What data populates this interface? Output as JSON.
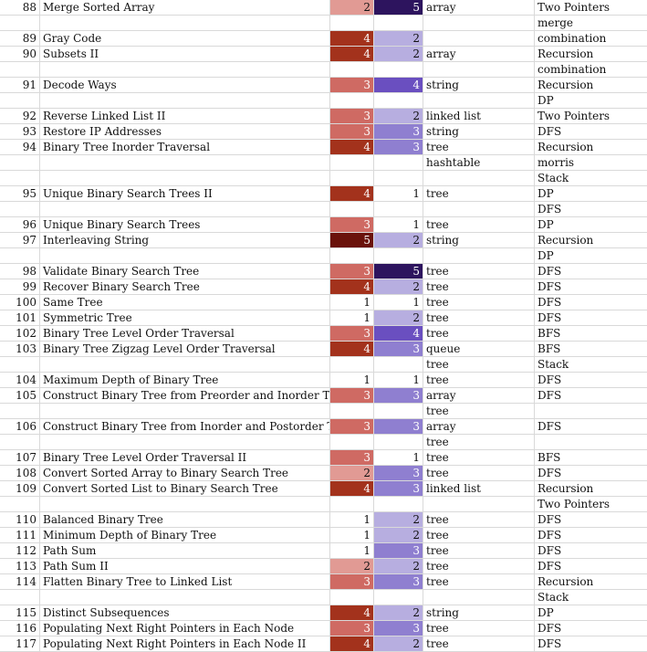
{
  "rows": [
    {
      "num": "88",
      "title": "Merge Sorted Array",
      "diff": "2",
      "freq": "5",
      "ds": "array",
      "alg": "Two Pointers"
    },
    {
      "num": "",
      "title": "",
      "diff": "",
      "freq": "",
      "ds": "",
      "alg": "merge"
    },
    {
      "num": "89",
      "title": "Gray Code",
      "diff": "4",
      "freq": "2",
      "ds": "",
      "alg": "combination"
    },
    {
      "num": "90",
      "title": "Subsets II",
      "diff": "4",
      "freq": "2",
      "ds": "array",
      "alg": "Recursion"
    },
    {
      "num": "",
      "title": "",
      "diff": "",
      "freq": "",
      "ds": "",
      "alg": "combination"
    },
    {
      "num": "91",
      "title": "Decode Ways",
      "diff": "3",
      "freq": "4",
      "ds": "string",
      "alg": "Recursion"
    },
    {
      "num": "",
      "title": "",
      "diff": "",
      "freq": "",
      "ds": "",
      "alg": "DP"
    },
    {
      "num": "92",
      "title": "Reverse Linked List II",
      "diff": "3",
      "freq": "2",
      "ds": "linked list",
      "alg": "Two Pointers"
    },
    {
      "num": "93",
      "title": "Restore IP Addresses",
      "diff": "3",
      "freq": "3",
      "ds": "string",
      "alg": "DFS"
    },
    {
      "num": "94",
      "title": "Binary Tree Inorder Traversal",
      "diff": "4",
      "freq": "3",
      "ds": "tree",
      "alg": "Recursion"
    },
    {
      "num": "",
      "title": "",
      "diff": "",
      "freq": "",
      "ds": "hashtable",
      "alg": "morris"
    },
    {
      "num": "",
      "title": "",
      "diff": "",
      "freq": "",
      "ds": "",
      "alg": "Stack"
    },
    {
      "num": "95",
      "title": "Unique Binary Search Trees II",
      "diff": "4",
      "freq": "1",
      "ds": "tree",
      "alg": "DP"
    },
    {
      "num": "",
      "title": "",
      "diff": "",
      "freq": "",
      "ds": "",
      "alg": "DFS"
    },
    {
      "num": "96",
      "title": "Unique Binary Search Trees",
      "diff": "3",
      "freq": "1",
      "ds": "tree",
      "alg": "DP"
    },
    {
      "num": "97",
      "title": "Interleaving String",
      "diff": "5",
      "freq": "2",
      "ds": "string",
      "alg": "Recursion"
    },
    {
      "num": "",
      "title": "",
      "diff": "",
      "freq": "",
      "ds": "",
      "alg": "DP"
    },
    {
      "num": "98",
      "title": "Validate Binary Search Tree",
      "diff": "3",
      "freq": "5",
      "ds": "tree",
      "alg": "DFS"
    },
    {
      "num": "99",
      "title": "Recover Binary Search Tree",
      "diff": "4",
      "freq": "2",
      "ds": "tree",
      "alg": "DFS"
    },
    {
      "num": "100",
      "title": "Same Tree",
      "diff": "1",
      "freq": "1",
      "ds": "tree",
      "alg": "DFS"
    },
    {
      "num": "101",
      "title": "Symmetric Tree",
      "diff": "1",
      "freq": "2",
      "ds": "tree",
      "alg": "DFS"
    },
    {
      "num": "102",
      "title": "Binary Tree Level Order Traversal",
      "diff": "3",
      "freq": "4",
      "ds": "tree",
      "alg": "BFS"
    },
    {
      "num": "103",
      "title": "Binary Tree Zigzag Level Order Traversal",
      "diff": "4",
      "freq": "3",
      "ds": "queue",
      "alg": "BFS"
    },
    {
      "num": "",
      "title": "",
      "diff": "",
      "freq": "",
      "ds": "tree",
      "alg": "Stack"
    },
    {
      "num": "104",
      "title": "Maximum Depth of Binary Tree",
      "diff": "1",
      "freq": "1",
      "ds": "tree",
      "alg": "DFS"
    },
    {
      "num": "105",
      "title": "Construct Binary Tree from Preorder and Inorder Tr",
      "diff": "3",
      "freq": "3",
      "ds": "array",
      "alg": "DFS"
    },
    {
      "num": "",
      "title": "",
      "diff": "",
      "freq": "",
      "ds": "tree",
      "alg": ""
    },
    {
      "num": "106",
      "title": "Construct Binary Tree from Inorder and Postorder T",
      "diff": "3",
      "freq": "3",
      "ds": "array",
      "alg": "DFS"
    },
    {
      "num": "",
      "title": "",
      "diff": "",
      "freq": "",
      "ds": "tree",
      "alg": ""
    },
    {
      "num": "107",
      "title": "Binary Tree Level Order Traversal II",
      "diff": "3",
      "freq": "1",
      "ds": "tree",
      "alg": "BFS"
    },
    {
      "num": "108",
      "title": "Convert Sorted Array to Binary Search Tree",
      "diff": "2",
      "freq": "3",
      "ds": "tree",
      "alg": "DFS"
    },
    {
      "num": "109",
      "title": "Convert Sorted List to Binary Search Tree",
      "diff": "4",
      "freq": "3",
      "ds": "linked list",
      "alg": "Recursion"
    },
    {
      "num": "",
      "title": "",
      "diff": "",
      "freq": "",
      "ds": "",
      "alg": "Two Pointers"
    },
    {
      "num": "110",
      "title": "Balanced Binary Tree",
      "diff": "1",
      "freq": "2",
      "ds": "tree",
      "alg": "DFS"
    },
    {
      "num": "111",
      "title": "Minimum Depth of Binary Tree",
      "diff": "1",
      "freq": "2",
      "ds": "tree",
      "alg": "DFS"
    },
    {
      "num": "112",
      "title": "Path Sum",
      "diff": "1",
      "freq": "3",
      "ds": "tree",
      "alg": "DFS"
    },
    {
      "num": "113",
      "title": "Path Sum II",
      "diff": "2",
      "freq": "2",
      "ds": "tree",
      "alg": "DFS"
    },
    {
      "num": "114",
      "title": "Flatten Binary Tree to Linked List",
      "diff": "3",
      "freq": "3",
      "ds": "tree",
      "alg": "Recursion"
    },
    {
      "num": "",
      "title": "",
      "diff": "",
      "freq": "",
      "ds": "",
      "alg": "Stack"
    },
    {
      "num": "115",
      "title": "Distinct Subsequences",
      "diff": "4",
      "freq": "2",
      "ds": "string",
      "alg": "DP"
    },
    {
      "num": "116",
      "title": "Populating Next Right Pointers in Each Node",
      "diff": "3",
      "freq": "3",
      "ds": "tree",
      "alg": "DFS"
    },
    {
      "num": "117",
      "title": "Populating Next Right Pointers in Each Node II",
      "diff": "4",
      "freq": "2",
      "ds": "tree",
      "alg": "DFS"
    }
  ],
  "colors": {
    "difficulty": {
      "1": "#ffffff",
      "2": "#e19a94",
      "3": "#cf6a63",
      "4": "#a3321c",
      "5": "#6a120b"
    },
    "difficulty_text": {
      "1": "#111111",
      "2": "#111111",
      "3": "#ffffff",
      "4": "#ffffff",
      "5": "#ffffff"
    },
    "frequency": {
      "1": "#ffffff",
      "2": "#b7aee0",
      "3": "#8f7fd0",
      "4": "#6a4fc0",
      "5": "#2d145e"
    },
    "frequency_text": {
      "1": "#111111",
      "2": "#111111",
      "3": "#ffffff",
      "4": "#ffffff",
      "5": "#ffffff"
    },
    "grid": "#d9d9d9"
  }
}
